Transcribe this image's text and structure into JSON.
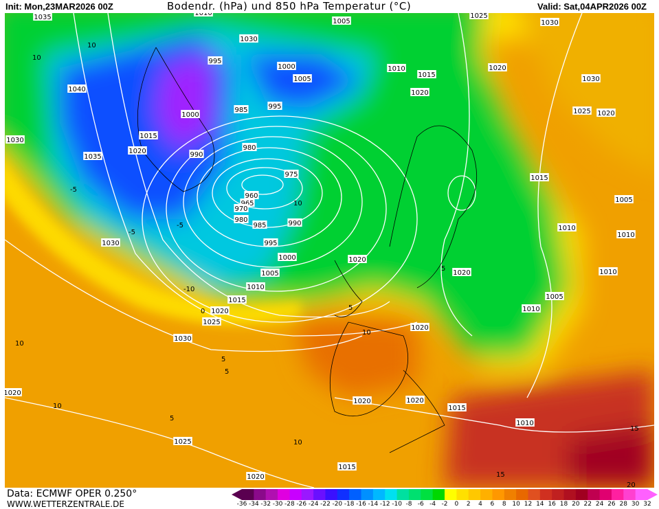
{
  "header": {
    "init": "Init: Mon,23MAR2026 00Z",
    "title": "Bodendr. (hPa) und 850 hPa Temperatur (°C)",
    "valid": "Valid: Sat,04APR2026 00Z"
  },
  "footer": {
    "source": "Data: ECMWF OPER 0.250°",
    "website": "WWW.WETTERZENTRALE.DE"
  },
  "legend": {
    "unit": "°C",
    "ticks": [
      "-36",
      "-34",
      "-32",
      "-30",
      "-28",
      "-26",
      "-24",
      "-22",
      "-20",
      "-18",
      "-16",
      "-14",
      "-12",
      "-10",
      "-8",
      "-6",
      "-4",
      "-2",
      "0",
      "2",
      "4",
      "6",
      "8",
      "10",
      "12",
      "14",
      "16",
      "18",
      "20",
      "22",
      "24",
      "26",
      "28",
      "30",
      "32"
    ],
    "colors": [
      "#5a0050",
      "#8a0a8a",
      "#b010b0",
      "#e000e0",
      "#c800ff",
      "#9a18ff",
      "#6a10ff",
      "#3a10ff",
      "#1030ff",
      "#0060ff",
      "#0090ff",
      "#00b8ff",
      "#00e0f0",
      "#00e0a0",
      "#00e070",
      "#00e040",
      "#00d800",
      "#ffff00",
      "#ffe000",
      "#ffc800",
      "#ffb000",
      "#ff9800",
      "#f08000",
      "#e86800",
      "#e05020",
      "#d03020",
      "#c02020",
      "#b01020",
      "#a00020",
      "#c00050",
      "#e00070",
      "#ff20a0",
      "#ff40d0",
      "#ff60ff"
    ]
  },
  "map": {
    "fields": "850 hPa temperature (shaded), sea-level pressure isobars (white)",
    "colors": {
      "isobar": "#ffffff",
      "coastline": "#000000",
      "warm": "#f0a000",
      "cold": "#0040ff",
      "mild": "#00cc44"
    },
    "isobar_labels": [
      "1035",
      "1010",
      "1005",
      "1025",
      "1030",
      "995",
      "1030",
      "1000",
      "1005",
      "1010",
      "1015",
      "1020",
      "1040",
      "1000",
      "985",
      "995",
      "1020",
      "1030",
      "1025",
      "1020",
      "1015",
      "1020",
      "990",
      "980",
      "1030",
      "1035",
      "975",
      "960",
      "965",
      "970",
      "980",
      "985",
      "990",
      "1015",
      "1005",
      "1010",
      "1010",
      "995",
      "1030",
      "1000",
      "1020",
      "1005",
      "1010",
      "1020",
      "1010",
      "1015",
      "1005",
      "1020",
      "1010",
      "1025",
      "1020",
      "1030",
      "1020",
      "1020",
      "1020",
      "1015",
      "1010",
      "1025",
      "1015",
      "1020"
    ],
    "temperature_labels": [
      "10",
      "10",
      "-5",
      "-10",
      "5",
      "0",
      "-5",
      "5",
      "10",
      "10",
      "5",
      "10",
      "15",
      "20",
      "15",
      "5",
      "10",
      "-5",
      "5",
      "10"
    ]
  }
}
